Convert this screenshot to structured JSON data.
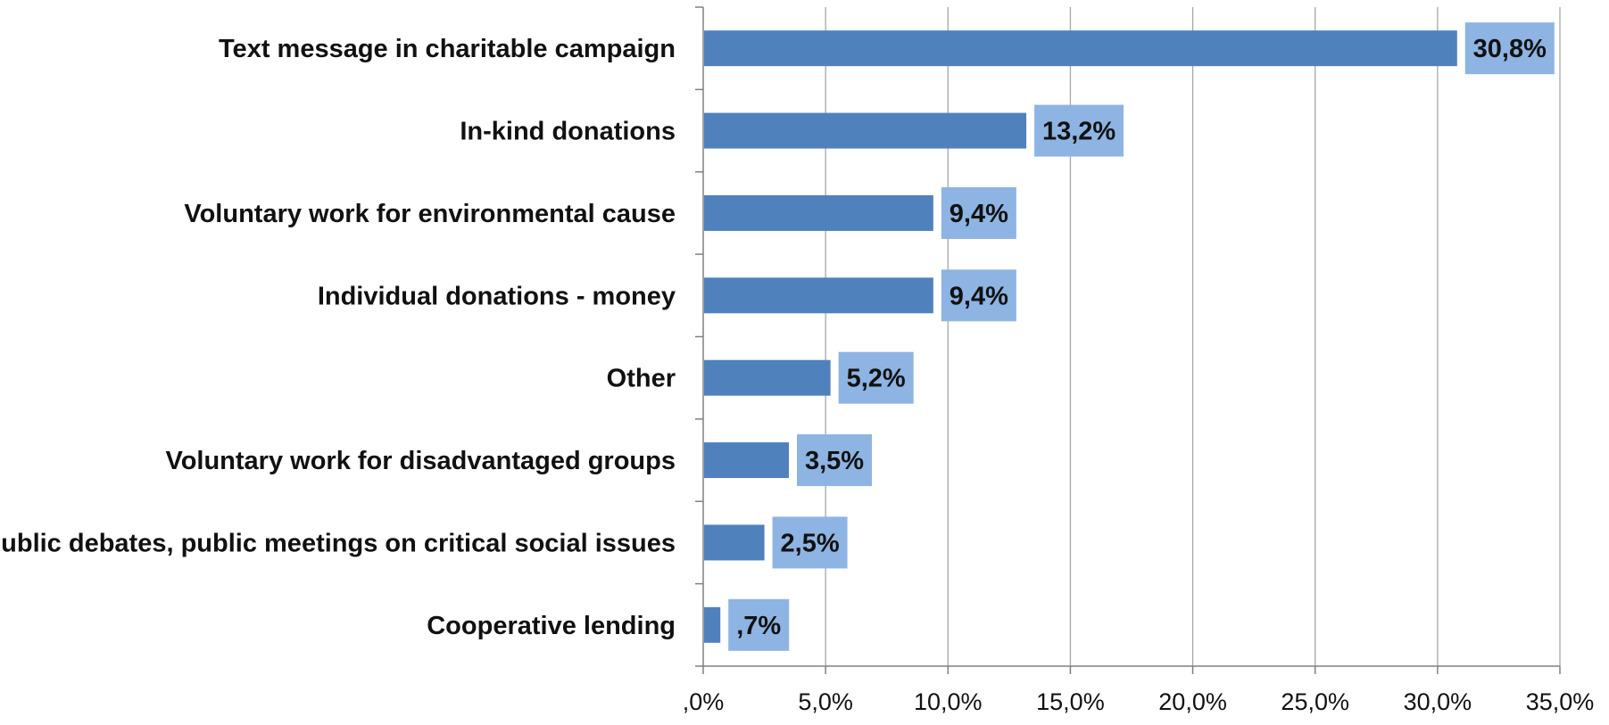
{
  "chart_data": {
    "type": "bar",
    "orientation": "horizontal",
    "title": "",
    "xlabel": "",
    "ylabel": "",
    "categories": [
      "Text message in charitable campaign",
      "In-kind donations",
      "Voluntary work for environmental cause",
      "Individual donations - money",
      "Other",
      "Voluntary work for disadvantaged groups",
      "Public debates, public meetings on critical social issues",
      "Cooperative lending"
    ],
    "values": [
      30.8,
      13.2,
      9.4,
      9.4,
      5.2,
      3.5,
      2.5,
      0.7
    ],
    "data_labels": [
      "30,8%",
      "13,2%",
      "9,4%",
      "9,4%",
      "5,2%",
      "3,5%",
      "2,5%",
      ",7%"
    ],
    "xlim": [
      0,
      35
    ],
    "x_ticks": [
      0,
      5,
      10,
      15,
      20,
      25,
      30,
      35
    ],
    "x_tick_labels": [
      ",0%",
      "5,0%",
      "10,0%",
      "15,0%",
      "20,0%",
      "25,0%",
      "30,0%",
      "35,0%"
    ],
    "grid": "vertical",
    "legend": "none",
    "colors": {
      "bar": "#4F81BD",
      "label_box": "#8DB4E2",
      "grid": "#A6A6A6",
      "axis": "#808080",
      "text": "#111111"
    }
  }
}
